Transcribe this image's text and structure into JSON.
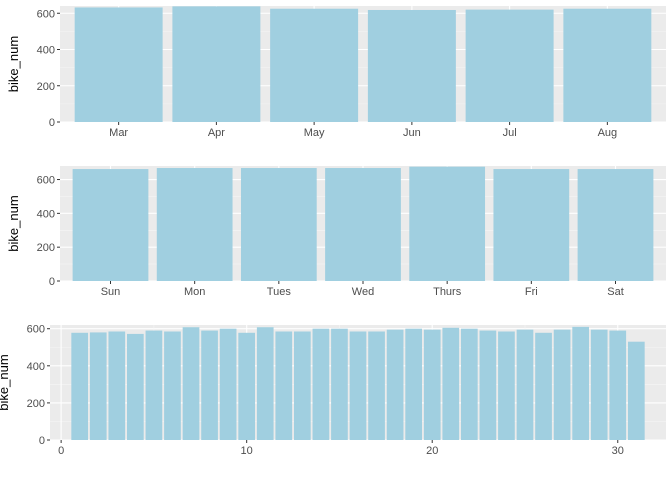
{
  "chart_data": [
    {
      "type": "bar",
      "title": "",
      "xlabel": "",
      "ylabel": "bike_num",
      "categories": [
        "Mar",
        "Apr",
        "May",
        "Jun",
        "Jul",
        "Aug"
      ],
      "values": [
        632,
        638,
        625,
        618,
        620,
        625
      ],
      "ylim": [
        0,
        640
      ],
      "yticks": [
        0,
        200,
        400,
        600
      ],
      "grid": true,
      "bar_color": "#a0cfe0"
    },
    {
      "type": "bar",
      "title": "",
      "xlabel": "",
      "ylabel": "bike_num",
      "categories": [
        "Sun",
        "Mon",
        "Tues",
        "Wed",
        "Thurs",
        "Fri",
        "Sat"
      ],
      "values": [
        662,
        668,
        668,
        668,
        676,
        662,
        662
      ],
      "ylim": [
        0,
        680
      ],
      "yticks": [
        0,
        200,
        400,
        600
      ],
      "grid": true,
      "bar_color": "#a0cfe0"
    },
    {
      "type": "bar",
      "title": "",
      "xlabel": "",
      "ylabel": "bike_num",
      "x": [
        1,
        2,
        3,
        4,
        5,
        6,
        7,
        8,
        9,
        10,
        11,
        12,
        13,
        14,
        15,
        16,
        17,
        18,
        19,
        20,
        21,
        22,
        23,
        24,
        25,
        26,
        27,
        28,
        29,
        30,
        31
      ],
      "values": [
        578,
        580,
        585,
        572,
        590,
        585,
        608,
        590,
        600,
        578,
        608,
        585,
        585,
        600,
        600,
        585,
        585,
        595,
        600,
        595,
        605,
        600,
        590,
        585,
        595,
        578,
        595,
        610,
        595,
        590,
        530
      ],
      "xlim": [
        -0.6,
        32.6
      ],
      "ylim": [
        0,
        620
      ],
      "xticks": [
        0,
        10,
        20,
        30
      ],
      "yticks": [
        0,
        200,
        400,
        600
      ],
      "grid": true,
      "bar_color": "#a0cfe0"
    }
  ]
}
